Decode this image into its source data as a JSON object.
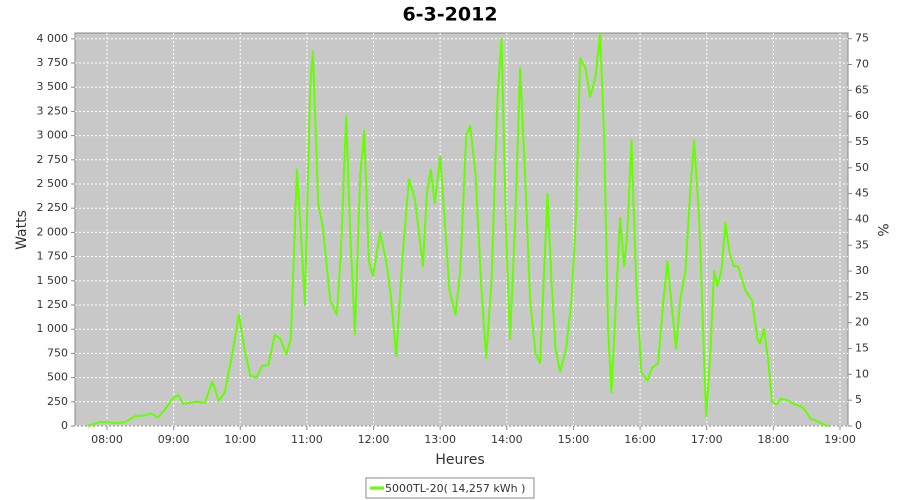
{
  "chart_data": {
    "type": "line",
    "title": "6-3-2012",
    "y_label": "Watts",
    "y2_label": "%",
    "x_label": "Heures",
    "xlim": [
      7.52,
      19.12
    ],
    "xticks": [
      {
        "value": 8,
        "label": "08:00"
      },
      {
        "value": 9,
        "label": "09:00"
      },
      {
        "value": 10,
        "label": "10:00"
      },
      {
        "value": 11,
        "label": "11:00"
      },
      {
        "value": 12,
        "label": "12:00"
      },
      {
        "value": 13,
        "label": "13:00"
      },
      {
        "value": 14,
        "label": "14:00"
      },
      {
        "value": 15,
        "label": "15:00"
      },
      {
        "value": 16,
        "label": "16:00"
      },
      {
        "value": 17,
        "label": "17:00"
      },
      {
        "value": 18,
        "label": "18:00"
      },
      {
        "value": 19,
        "label": "19:00"
      }
    ],
    "ylim": [
      0,
      4060
    ],
    "yticks": [
      0,
      250,
      500,
      750,
      {
        "value": 1000,
        "label": "1 000"
      },
      {
        "value": 1250,
        "label": "1 250"
      },
      {
        "value": 1500,
        "label": "1 500"
      },
      {
        "value": 1750,
        "label": "1 750"
      },
      {
        "value": 2000,
        "label": "2 000"
      },
      {
        "value": 2250,
        "label": "2 250"
      },
      {
        "value": 2500,
        "label": "2 500"
      },
      {
        "value": 2750,
        "label": "2 750"
      },
      {
        "value": 3000,
        "label": "3 000"
      },
      {
        "value": 3250,
        "label": "3 250"
      },
      {
        "value": 3500,
        "label": "3 500"
      },
      {
        "value": 3750,
        "label": "3 750"
      },
      {
        "value": 4000,
        "label": "4 000"
      }
    ],
    "y2lim": [
      0,
      76.1
    ],
    "y2ticks": [
      0,
      5,
      10,
      15,
      20,
      25,
      30,
      35,
      40,
      45,
      50,
      55,
      60,
      65,
      70,
      75
    ],
    "grid": true,
    "legend": "bottom",
    "x": [
      7.71,
      7.89,
      8.0,
      8.12,
      8.27,
      8.42,
      8.57,
      8.65,
      8.77,
      8.87,
      8.98,
      9.07,
      9.14,
      9.25,
      9.35,
      9.47,
      9.58,
      9.68,
      9.77,
      9.88,
      9.98,
      10.06,
      10.15,
      10.24,
      10.33,
      10.42,
      10.52,
      10.6,
      10.69,
      10.76,
      10.85,
      10.91,
      10.97,
      11.05,
      11.09,
      11.17,
      11.24,
      11.35,
      11.45,
      11.51,
      11.59,
      11.65,
      11.72,
      11.8,
      11.86,
      11.93,
      11.99,
      12.1,
      12.19,
      12.26,
      12.34,
      12.43,
      12.53,
      12.62,
      12.74,
      12.8,
      12.86,
      12.92,
      13.0,
      13.06,
      13.14,
      13.23,
      13.3,
      13.39,
      13.45,
      13.53,
      13.62,
      13.69,
      13.77,
      13.86,
      13.92,
      13.99,
      14.05,
      14.13,
      14.2,
      14.28,
      14.35,
      14.43,
      14.5,
      14.61,
      14.67,
      14.73,
      14.8,
      14.89,
      14.97,
      15.04,
      15.1,
      15.18,
      15.25,
      15.33,
      15.4,
      15.46,
      15.52,
      15.57,
      15.61,
      15.7,
      15.76,
      15.81,
      15.87,
      15.94,
      16.02,
      16.11,
      16.18,
      16.27,
      16.35,
      16.41,
      16.48,
      16.54,
      16.6,
      16.68,
      16.75,
      16.81,
      16.89,
      16.95,
      16.99,
      17.05,
      17.11,
      17.16,
      17.22,
      17.28,
      17.34,
      17.41,
      17.47,
      17.58,
      17.68,
      17.76,
      17.8,
      17.86,
      17.92,
      17.98,
      18.05,
      18.11,
      18.2,
      18.33,
      18.42,
      18.48,
      18.56,
      18.63,
      18.71,
      18.83
    ],
    "series": [
      {
        "name": "5000TL-20( 14,257 kWh )",
        "color": "#66ff00",
        "values": [
          0,
          40,
          40,
          30,
          40,
          100,
          110,
          130,
          90,
          170,
          280,
          320,
          230,
          240,
          250,
          240,
          460,
          260,
          350,
          750,
          1150,
          800,
          520,
          500,
          620,
          630,
          940,
          900,
          740,
          900,
          2650,
          2000,
          1250,
          3500,
          3870,
          2300,
          2050,
          1300,
          1150,
          1800,
          3200,
          2000,
          950,
          2600,
          3050,
          1700,
          1550,
          2000,
          1700,
          1350,
          720,
          1700,
          2550,
          2350,
          1650,
          2400,
          2650,
          2300,
          2780,
          2200,
          1400,
          1150,
          1600,
          3000,
          3100,
          2600,
          1400,
          700,
          1500,
          3400,
          4000,
          2000,
          900,
          2200,
          3700,
          2500,
          1300,
          750,
          650,
          2400,
          1500,
          800,
          560,
          800,
          1300,
          2200,
          3800,
          3700,
          3400,
          3600,
          4050,
          3000,
          1000,
          350,
          900,
          2150,
          1650,
          2000,
          2950,
          1500,
          550,
          470,
          600,
          650,
          1300,
          1700,
          1200,
          800,
          1300,
          1600,
          2400,
          2950,
          2100,
          900,
          100,
          700,
          1600,
          1450,
          1600,
          2100,
          1800,
          1650,
          1650,
          1400,
          1300,
          900,
          850,
          1000,
          700,
          250,
          220,
          280,
          270,
          220,
          200,
          160,
          70,
          60,
          30,
          0
        ]
      }
    ]
  }
}
